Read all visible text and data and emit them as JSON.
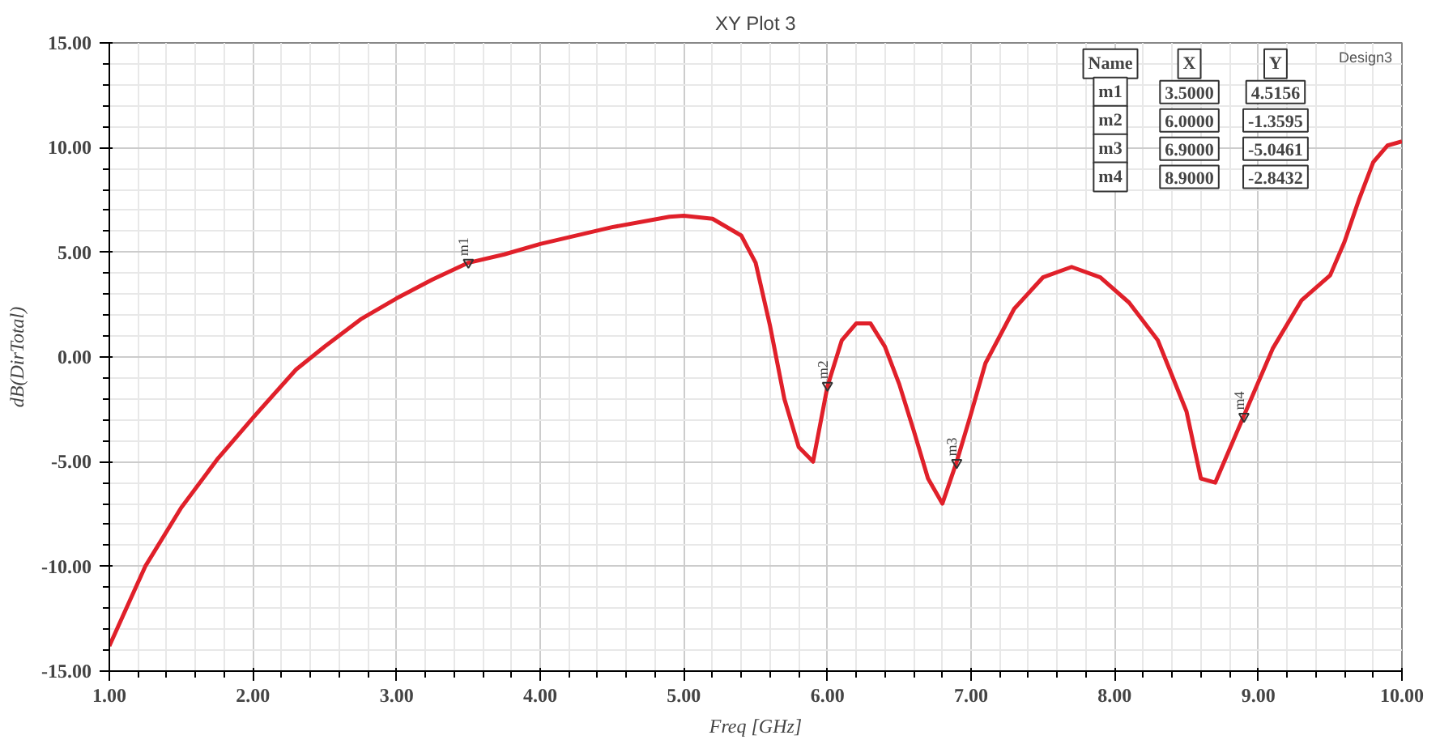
{
  "chart_data": {
    "type": "line",
    "title": "XY Plot 3",
    "xlabel": "Freq [GHz]",
    "ylabel": "dB(DirTotal)",
    "x": [
      1.0,
      1.25,
      1.5,
      1.75,
      2.0,
      2.3,
      2.5,
      2.75,
      3.0,
      3.25,
      3.5,
      3.75,
      4.0,
      4.5,
      4.9,
      5.0,
      5.2,
      5.4,
      5.5,
      5.6,
      5.7,
      5.8,
      5.9,
      6.0,
      6.1,
      6.2,
      6.3,
      6.4,
      6.5,
      6.6,
      6.7,
      6.8,
      6.9,
      7.0,
      7.1,
      7.3,
      7.5,
      7.7,
      7.9,
      8.1,
      8.3,
      8.5,
      8.6,
      8.7,
      8.9,
      9.1,
      9.3,
      9.5,
      9.6,
      9.7,
      9.8,
      9.9,
      10.0
    ],
    "series": [
      {
        "color": "#e0202a",
        "values": [
          -13.8,
          -10.0,
          -7.2,
          -4.9,
          -2.9,
          -0.6,
          0.5,
          1.8,
          2.8,
          3.7,
          4.5,
          4.9,
          5.4,
          6.2,
          6.7,
          6.75,
          6.6,
          5.8,
          4.5,
          1.5,
          -2.0,
          -4.3,
          -5.0,
          -1.4,
          0.8,
          1.6,
          1.6,
          0.5,
          -1.3,
          -3.5,
          -5.8,
          -7.0,
          -5.0,
          -2.7,
          -0.3,
          2.3,
          3.8,
          4.3,
          3.8,
          2.6,
          0.8,
          -2.6,
          -5.8,
          -6.0,
          -2.8,
          0.4,
          2.7,
          3.9,
          5.5,
          7.5,
          9.3,
          10.1,
          10.3
        ]
      }
    ],
    "xlim": [
      1,
      10
    ],
    "ylim": [
      -15,
      15
    ],
    "xticks": [
      {
        "value": 1,
        "label": "1.00"
      },
      {
        "value": 2,
        "label": "2.00"
      },
      {
        "value": 3,
        "label": "3.00"
      },
      {
        "value": 4,
        "label": "4.00"
      },
      {
        "value": 5,
        "label": "5.00"
      },
      {
        "value": 6,
        "label": "6.00"
      },
      {
        "value": 7,
        "label": "7.00"
      },
      {
        "value": 8,
        "label": "8.00"
      },
      {
        "value": 9,
        "label": "9.00"
      },
      {
        "value": 10,
        "label": "10.00"
      }
    ],
    "yticks": [
      {
        "value": -15,
        "label": "-15.00"
      },
      {
        "value": -10,
        "label": "-10.00"
      },
      {
        "value": -5,
        "label": "-5.00"
      },
      {
        "value": 0,
        "label": "0.00"
      },
      {
        "value": 5,
        "label": "5.00"
      },
      {
        "value": 10,
        "label": "10.00"
      },
      {
        "value": 15,
        "label": "15.00"
      }
    ],
    "grid": true,
    "annotations": [
      {
        "text": "m1",
        "x": 3.5,
        "y": 4.5156
      },
      {
        "text": "m2",
        "x": 6.0,
        "y": -1.3595
      },
      {
        "text": "m3",
        "x": 6.9,
        "y": -5.0461
      },
      {
        "text": "m4",
        "x": 8.9,
        "y": -2.8432
      },
      "Design3",
      "Name",
      "X",
      "Y",
      "m1",
      "3.5000",
      "4.5156",
      "m2",
      "6.0000",
      "-1.3595",
      "m3",
      "6.9000",
      "-5.0461",
      "m4",
      "8.9000",
      "-2.8432"
    ]
  }
}
